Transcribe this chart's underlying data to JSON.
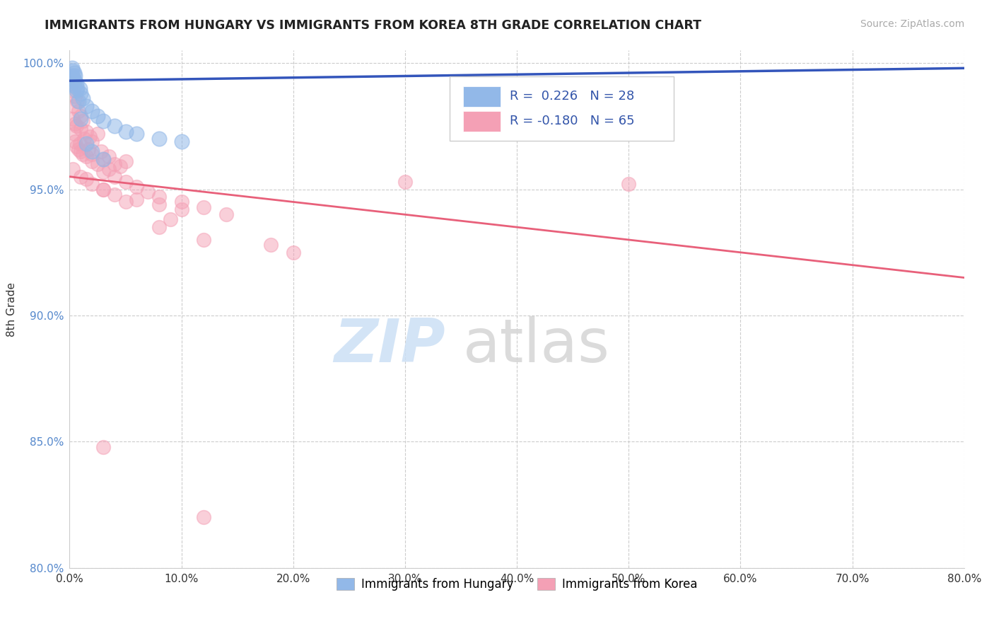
{
  "title": "IMMIGRANTS FROM HUNGARY VS IMMIGRANTS FROM KOREA 8TH GRADE CORRELATION CHART",
  "source": "Source: ZipAtlas.com",
  "ylabel": "8th Grade",
  "xmin": 0.0,
  "xmax": 80.0,
  "ymin": 80.0,
  "ymax": 100.5,
  "yticks": [
    80.0,
    85.0,
    90.0,
    95.0,
    100.0
  ],
  "xticks": [
    0.0,
    10.0,
    20.0,
    30.0,
    40.0,
    50.0,
    60.0,
    70.0,
    80.0
  ],
  "hungary_R": 0.226,
  "hungary_N": 28,
  "korea_R": -0.18,
  "korea_N": 65,
  "hungary_color": "#92b8e8",
  "korea_color": "#f4a0b5",
  "hungary_line_color": "#3355bb",
  "korea_line_color": "#e8607a",
  "hungary_line_y0": 99.3,
  "hungary_line_y1": 99.8,
  "korea_line_y0": 95.5,
  "korea_line_y1": 91.5,
  "hungary_scatter": [
    [
      0.2,
      99.8
    ],
    [
      0.3,
      99.7
    ],
    [
      0.4,
      99.6
    ],
    [
      0.5,
      99.5
    ],
    [
      0.2,
      99.5
    ],
    [
      0.3,
      99.4
    ],
    [
      0.5,
      99.3
    ],
    [
      0.6,
      99.2
    ],
    [
      0.4,
      99.1
    ],
    [
      0.7,
      99.0
    ],
    [
      1.0,
      98.8
    ],
    [
      1.2,
      98.6
    ],
    [
      0.8,
      98.5
    ],
    [
      1.5,
      98.3
    ],
    [
      2.0,
      98.1
    ],
    [
      2.5,
      97.9
    ],
    [
      3.0,
      97.7
    ],
    [
      4.0,
      97.5
    ],
    [
      5.0,
      97.3
    ],
    [
      6.0,
      97.2
    ],
    [
      8.0,
      97.0
    ],
    [
      10.0,
      96.9
    ],
    [
      1.0,
      97.8
    ],
    [
      2.0,
      96.5
    ],
    [
      3.0,
      96.2
    ],
    [
      1.5,
      96.8
    ],
    [
      0.6,
      98.9
    ],
    [
      0.9,
      99.0
    ]
  ],
  "korea_scatter": [
    [
      0.2,
      99.2
    ],
    [
      0.3,
      98.9
    ],
    [
      0.5,
      98.7
    ],
    [
      0.7,
      98.5
    ],
    [
      0.4,
      98.3
    ],
    [
      0.8,
      98.1
    ],
    [
      1.0,
      97.9
    ],
    [
      1.2,
      97.7
    ],
    [
      0.6,
      97.5
    ],
    [
      1.5,
      97.3
    ],
    [
      1.8,
      97.1
    ],
    [
      2.0,
      96.9
    ],
    [
      0.3,
      97.8
    ],
    [
      0.5,
      97.6
    ],
    [
      1.0,
      97.4
    ],
    [
      2.5,
      97.2
    ],
    [
      1.3,
      97.0
    ],
    [
      0.9,
      96.8
    ],
    [
      1.7,
      96.6
    ],
    [
      2.0,
      96.4
    ],
    [
      3.0,
      96.2
    ],
    [
      4.0,
      96.0
    ],
    [
      2.8,
      96.5
    ],
    [
      3.5,
      96.3
    ],
    [
      5.0,
      96.1
    ],
    [
      4.5,
      95.9
    ],
    [
      0.4,
      97.2
    ],
    [
      0.6,
      96.7
    ],
    [
      1.0,
      96.5
    ],
    [
      1.5,
      96.3
    ],
    [
      2.5,
      96.0
    ],
    [
      3.5,
      95.8
    ],
    [
      0.5,
      96.9
    ],
    [
      0.8,
      96.6
    ],
    [
      1.2,
      96.4
    ],
    [
      2.0,
      96.1
    ],
    [
      3.0,
      95.7
    ],
    [
      4.0,
      95.5
    ],
    [
      5.0,
      95.3
    ],
    [
      6.0,
      95.1
    ],
    [
      7.0,
      94.9
    ],
    [
      8.0,
      94.7
    ],
    [
      10.0,
      94.5
    ],
    [
      12.0,
      94.3
    ],
    [
      1.0,
      95.5
    ],
    [
      2.0,
      95.2
    ],
    [
      3.0,
      95.0
    ],
    [
      4.0,
      94.8
    ],
    [
      6.0,
      94.6
    ],
    [
      8.0,
      94.4
    ],
    [
      10.0,
      94.2
    ],
    [
      14.0,
      94.0
    ],
    [
      0.3,
      95.8
    ],
    [
      1.5,
      95.4
    ],
    [
      3.0,
      95.0
    ],
    [
      5.0,
      94.5
    ],
    [
      8.0,
      93.5
    ],
    [
      12.0,
      93.0
    ],
    [
      20.0,
      92.5
    ],
    [
      30.0,
      95.3
    ],
    [
      50.0,
      95.2
    ],
    [
      9.0,
      93.8
    ],
    [
      18.0,
      92.8
    ],
    [
      3.0,
      84.8
    ],
    [
      12.0,
      82.0
    ]
  ],
  "watermark_zip_color": "#cce0f5",
  "watermark_atlas_color": "#d5d5d5"
}
